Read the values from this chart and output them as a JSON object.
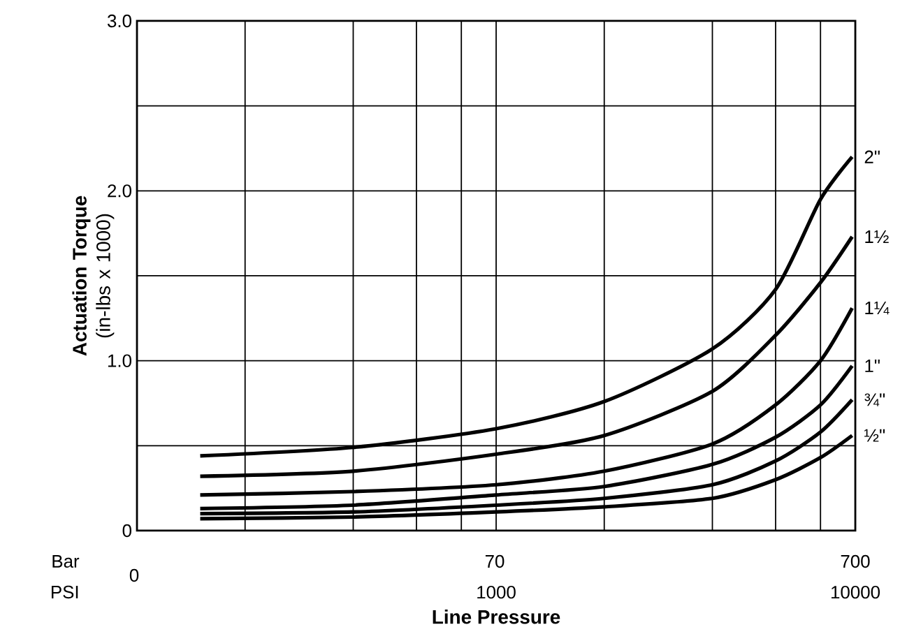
{
  "chart_data": {
    "type": "line",
    "xlabel": "Line Pressure",
    "ylabel": "**Actuation Torque** (in-lbs x 1000)",
    "annotations": [
      "Bar",
      "PSI",
      "0",
      "70",
      "700"
    ],
    "log": "x",
    "xlim": [
      100,
      10000
    ],
    "xticks": [
      {
        "value": 200,
        "label": null
      },
      {
        "value": 400,
        "label": null
      },
      {
        "value": 600,
        "label": null
      },
      {
        "value": 800,
        "label": null
      },
      1000,
      {
        "value": 2000,
        "label": null
      },
      {
        "value": 4000,
        "label": null
      },
      {
        "value": 6000,
        "label": null
      },
      {
        "value": 8000,
        "label": null
      },
      10000
    ],
    "ylim": [
      0,
      3
    ],
    "yticks": [
      {
        "value": 0,
        "label": "0"
      },
      {
        "value": 0.5,
        "label": null
      },
      {
        "value": 1,
        "label": "1.0"
      },
      {
        "value": 1.5,
        "label": null
      },
      {
        "value": 2,
        "label": "2.0"
      },
      {
        "value": 2.5,
        "label": null
      },
      {
        "value": 3,
        "label": "3.0"
      }
    ],
    "grid": true,
    "line_style": "solid",
    "x": [
      150,
      400,
      1000,
      2000,
      4000,
      6000,
      8000,
      9800
    ],
    "series": [
      {
        "name": "2\"",
        "color": "#000000",
        "values": [
          0.44,
          0.49,
          0.6,
          0.76,
          1.07,
          1.42,
          1.95,
          2.2
        ]
      },
      {
        "name": "1½",
        "color": "#000000",
        "values": [
          0.32,
          0.35,
          0.45,
          0.56,
          0.82,
          1.15,
          1.46,
          1.73
        ]
      },
      {
        "name": "1¼",
        "color": "#000000",
        "values": [
          0.21,
          0.23,
          0.27,
          0.35,
          0.51,
          0.74,
          1.0,
          1.31
        ]
      },
      {
        "name": "1\"",
        "color": "#000000",
        "values": [
          0.13,
          0.15,
          0.21,
          0.26,
          0.39,
          0.55,
          0.74,
          0.97
        ]
      },
      {
        "name": "¾\"",
        "color": "#000000",
        "values": [
          0.1,
          0.11,
          0.15,
          0.19,
          0.27,
          0.41,
          0.58,
          0.77
        ]
      },
      {
        "name": "½\"",
        "color": "#000000",
        "values": [
          0.07,
          0.08,
          0.11,
          0.14,
          0.19,
          0.3,
          0.43,
          0.56
        ]
      }
    ]
  }
}
